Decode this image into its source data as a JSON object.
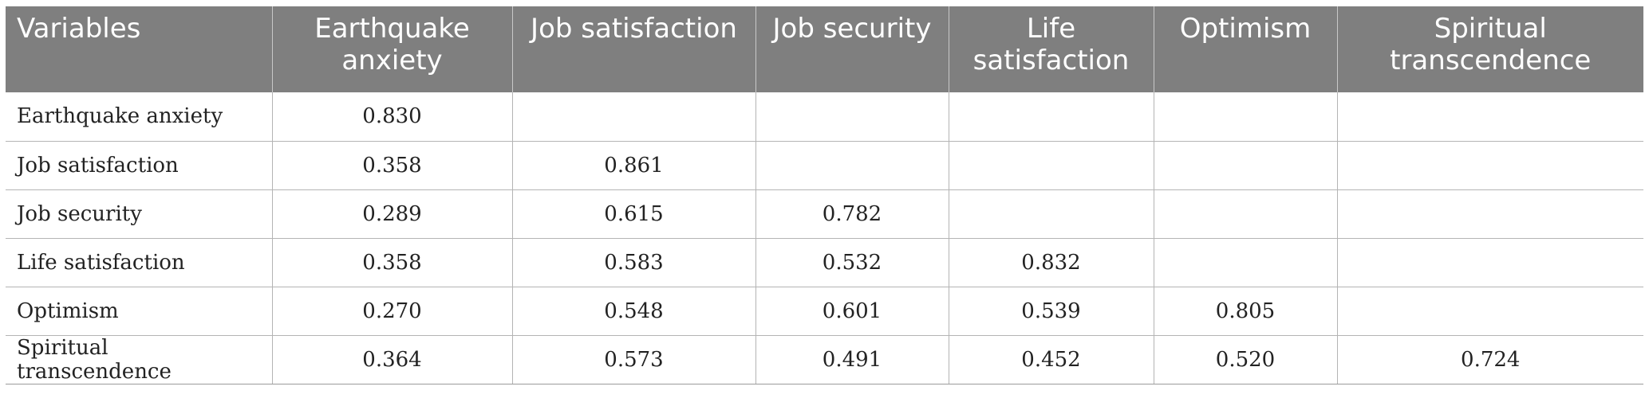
{
  "table": {
    "headers": [
      "Variables",
      "Earthquake anxiety",
      "Job satisfaction",
      "Job security",
      "Life satisfaction",
      "Optimism",
      "Spiritual transcendence"
    ],
    "rows": [
      [
        "Earthquake anxiety",
        "0.830",
        "",
        "",
        "",
        "",
        ""
      ],
      [
        "Job satisfaction",
        "0.358",
        "0.861",
        "",
        "",
        "",
        ""
      ],
      [
        "Job security",
        "0.289",
        "0.615",
        "0.782",
        "",
        "",
        ""
      ],
      [
        "Life satisfaction",
        "0.358",
        "0.583",
        "0.532",
        "0.832",
        "",
        ""
      ],
      [
        "Optimism",
        "0.270",
        "0.548",
        "0.601",
        "0.539",
        "0.805",
        ""
      ],
      [
        "Spiritual transcendence",
        "0.364",
        "0.573",
        "0.491",
        "0.452",
        "0.520",
        "0.724"
      ]
    ]
  },
  "colors": {
    "header_bg": "#7f7f7f",
    "header_text": "#ffffff",
    "grid": "#b4b4b4"
  }
}
